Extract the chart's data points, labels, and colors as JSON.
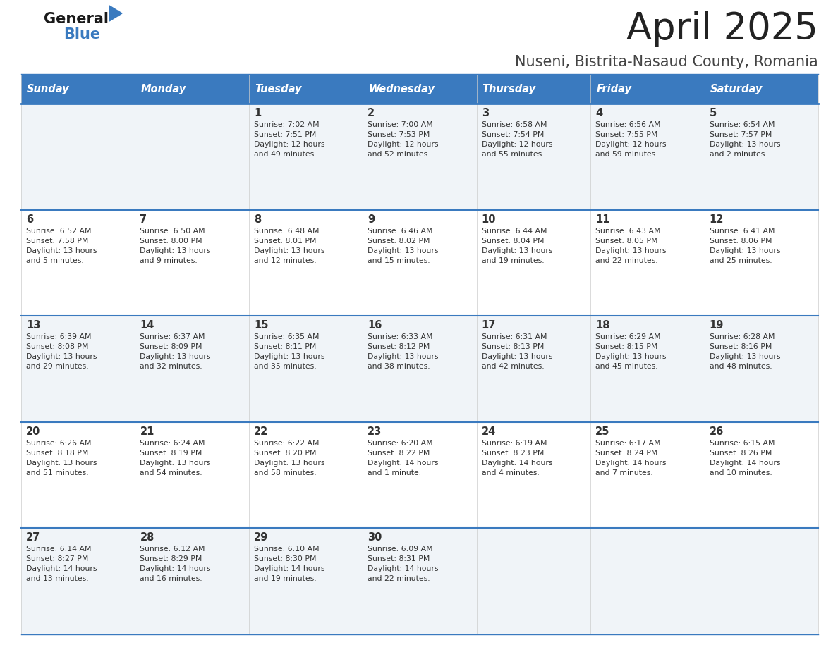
{
  "title": "April 2025",
  "subtitle": "Nuseni, Bistrita-Nasaud County, Romania",
  "header_color": "#3a7abf",
  "header_text_color": "#ffffff",
  "cell_bg_even": "#f0f4f8",
  "cell_bg_odd": "#ffffff",
  "text_color": "#333333",
  "line_color": "#3a7abf",
  "days_of_week": [
    "Sunday",
    "Monday",
    "Tuesday",
    "Wednesday",
    "Thursday",
    "Friday",
    "Saturday"
  ],
  "weeks": [
    [
      {
        "day": "",
        "info": ""
      },
      {
        "day": "",
        "info": ""
      },
      {
        "day": "1",
        "info": "Sunrise: 7:02 AM\nSunset: 7:51 PM\nDaylight: 12 hours\nand 49 minutes."
      },
      {
        "day": "2",
        "info": "Sunrise: 7:00 AM\nSunset: 7:53 PM\nDaylight: 12 hours\nand 52 minutes."
      },
      {
        "day": "3",
        "info": "Sunrise: 6:58 AM\nSunset: 7:54 PM\nDaylight: 12 hours\nand 55 minutes."
      },
      {
        "day": "4",
        "info": "Sunrise: 6:56 AM\nSunset: 7:55 PM\nDaylight: 12 hours\nand 59 minutes."
      },
      {
        "day": "5",
        "info": "Sunrise: 6:54 AM\nSunset: 7:57 PM\nDaylight: 13 hours\nand 2 minutes."
      }
    ],
    [
      {
        "day": "6",
        "info": "Sunrise: 6:52 AM\nSunset: 7:58 PM\nDaylight: 13 hours\nand 5 minutes."
      },
      {
        "day": "7",
        "info": "Sunrise: 6:50 AM\nSunset: 8:00 PM\nDaylight: 13 hours\nand 9 minutes."
      },
      {
        "day": "8",
        "info": "Sunrise: 6:48 AM\nSunset: 8:01 PM\nDaylight: 13 hours\nand 12 minutes."
      },
      {
        "day": "9",
        "info": "Sunrise: 6:46 AM\nSunset: 8:02 PM\nDaylight: 13 hours\nand 15 minutes."
      },
      {
        "day": "10",
        "info": "Sunrise: 6:44 AM\nSunset: 8:04 PM\nDaylight: 13 hours\nand 19 minutes."
      },
      {
        "day": "11",
        "info": "Sunrise: 6:43 AM\nSunset: 8:05 PM\nDaylight: 13 hours\nand 22 minutes."
      },
      {
        "day": "12",
        "info": "Sunrise: 6:41 AM\nSunset: 8:06 PM\nDaylight: 13 hours\nand 25 minutes."
      }
    ],
    [
      {
        "day": "13",
        "info": "Sunrise: 6:39 AM\nSunset: 8:08 PM\nDaylight: 13 hours\nand 29 minutes."
      },
      {
        "day": "14",
        "info": "Sunrise: 6:37 AM\nSunset: 8:09 PM\nDaylight: 13 hours\nand 32 minutes."
      },
      {
        "day": "15",
        "info": "Sunrise: 6:35 AM\nSunset: 8:11 PM\nDaylight: 13 hours\nand 35 minutes."
      },
      {
        "day": "16",
        "info": "Sunrise: 6:33 AM\nSunset: 8:12 PM\nDaylight: 13 hours\nand 38 minutes."
      },
      {
        "day": "17",
        "info": "Sunrise: 6:31 AM\nSunset: 8:13 PM\nDaylight: 13 hours\nand 42 minutes."
      },
      {
        "day": "18",
        "info": "Sunrise: 6:29 AM\nSunset: 8:15 PM\nDaylight: 13 hours\nand 45 minutes."
      },
      {
        "day": "19",
        "info": "Sunrise: 6:28 AM\nSunset: 8:16 PM\nDaylight: 13 hours\nand 48 minutes."
      }
    ],
    [
      {
        "day": "20",
        "info": "Sunrise: 6:26 AM\nSunset: 8:18 PM\nDaylight: 13 hours\nand 51 minutes."
      },
      {
        "day": "21",
        "info": "Sunrise: 6:24 AM\nSunset: 8:19 PM\nDaylight: 13 hours\nand 54 minutes."
      },
      {
        "day": "22",
        "info": "Sunrise: 6:22 AM\nSunset: 8:20 PM\nDaylight: 13 hours\nand 58 minutes."
      },
      {
        "day": "23",
        "info": "Sunrise: 6:20 AM\nSunset: 8:22 PM\nDaylight: 14 hours\nand 1 minute."
      },
      {
        "day": "24",
        "info": "Sunrise: 6:19 AM\nSunset: 8:23 PM\nDaylight: 14 hours\nand 4 minutes."
      },
      {
        "day": "25",
        "info": "Sunrise: 6:17 AM\nSunset: 8:24 PM\nDaylight: 14 hours\nand 7 minutes."
      },
      {
        "day": "26",
        "info": "Sunrise: 6:15 AM\nSunset: 8:26 PM\nDaylight: 14 hours\nand 10 minutes."
      }
    ],
    [
      {
        "day": "27",
        "info": "Sunrise: 6:14 AM\nSunset: 8:27 PM\nDaylight: 14 hours\nand 13 minutes."
      },
      {
        "day": "28",
        "info": "Sunrise: 6:12 AM\nSunset: 8:29 PM\nDaylight: 14 hours\nand 16 minutes."
      },
      {
        "day": "29",
        "info": "Sunrise: 6:10 AM\nSunset: 8:30 PM\nDaylight: 14 hours\nand 19 minutes."
      },
      {
        "day": "30",
        "info": "Sunrise: 6:09 AM\nSunset: 8:31 PM\nDaylight: 14 hours\nand 22 minutes."
      },
      {
        "day": "",
        "info": ""
      },
      {
        "day": "",
        "info": ""
      },
      {
        "day": "",
        "info": ""
      }
    ]
  ],
  "fig_width": 11.88,
  "fig_height": 9.18,
  "dpi": 100
}
